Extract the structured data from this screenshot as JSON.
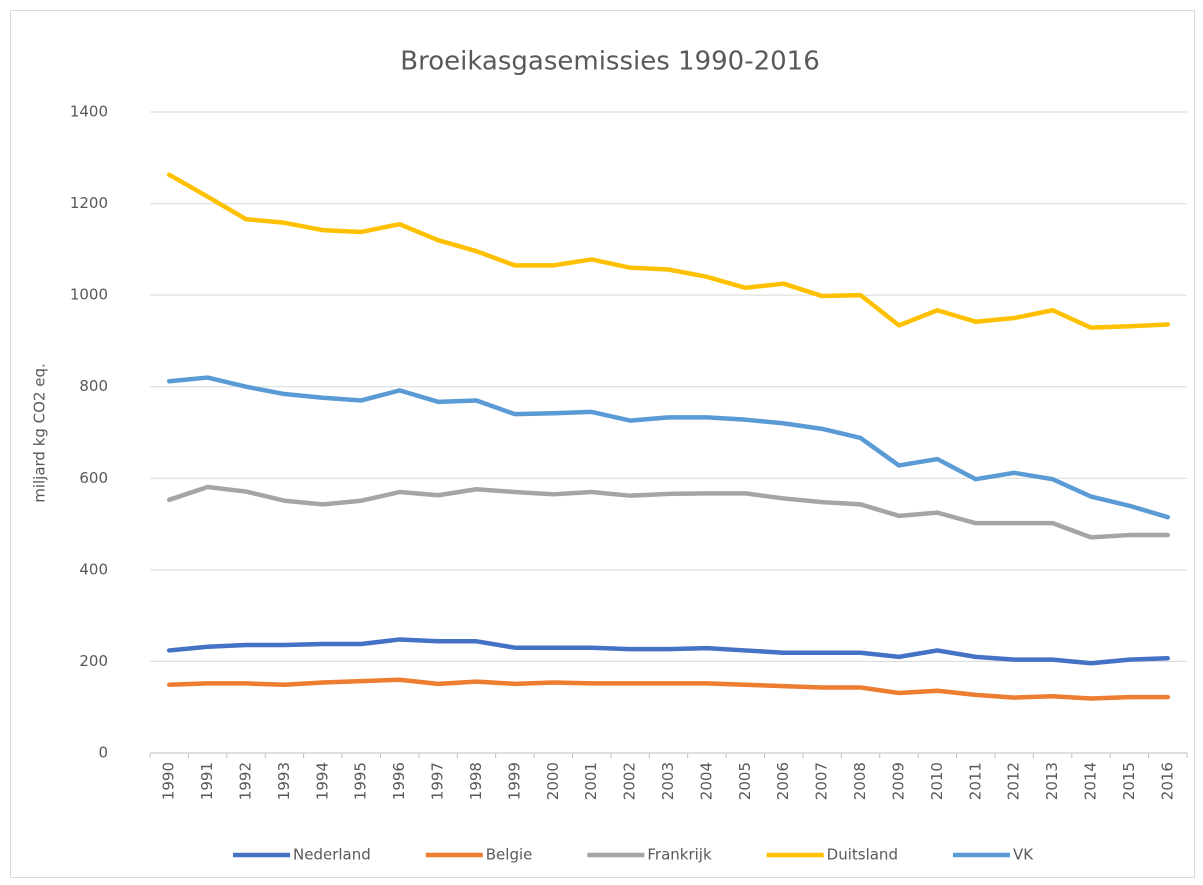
{
  "chart_data": {
    "type": "line",
    "title": "Broeikasgasemissies 1990-2016",
    "y_label": "miljard kg  CO2 eq.",
    "categories": [
      "1990",
      "1991",
      "1992",
      "1993",
      "1994",
      "1995",
      "1996",
      "1997",
      "1998",
      "1999",
      "2000",
      "2001",
      "2002",
      "2003",
      "2004",
      "2005",
      "2006",
      "2007",
      "2008",
      "2009",
      "2010",
      "2011",
      "2012",
      "2013",
      "2014",
      "2015",
      "2016"
    ],
    "series": [
      {
        "name": "Nederland",
        "color": "#4472c4",
        "values": [
          224,
          232,
          236,
          236,
          238,
          238,
          248,
          244,
          244,
          230,
          230,
          230,
          227,
          227,
          229,
          224,
          219,
          219,
          219,
          210,
          224,
          210,
          204,
          204,
          196,
          204,
          207
        ]
      },
      {
        "name": "Belgie",
        "color": "#ed7d31",
        "values": [
          149,
          152,
          152,
          149,
          154,
          157,
          160,
          151,
          156,
          151,
          154,
          152,
          152,
          152,
          152,
          149,
          146,
          143,
          143,
          131,
          136,
          127,
          121,
          124,
          119,
          122,
          122
        ]
      },
      {
        "name": "Frankrijk",
        "color": "#a5a5a5",
        "values": [
          553,
          581,
          571,
          551,
          543,
          551,
          570,
          563,
          576,
          570,
          565,
          570,
          562,
          566,
          567,
          567,
          556,
          548,
          543,
          518,
          525,
          502,
          502,
          502,
          471,
          476,
          476
        ]
      },
      {
        "name": "Duitsland",
        "color": "#ffc000",
        "values": [
          1263,
          1215,
          1166,
          1158,
          1142,
          1138,
          1155,
          1120,
          1096,
          1065,
          1065,
          1078,
          1060,
          1056,
          1040,
          1016,
          1025,
          998,
          1000,
          934,
          967,
          942,
          950,
          967,
          929,
          932,
          936
        ]
      },
      {
        "name": "VK",
        "color": "#5b9bd5",
        "values": [
          812,
          820,
          800,
          784,
          776,
          770,
          792,
          767,
          770,
          740,
          742,
          745,
          726,
          733,
          733,
          728,
          720,
          708,
          688,
          628,
          642,
          598,
          612,
          598,
          560,
          540,
          515
        ]
      }
    ],
    "ylim": [
      0,
      1400
    ],
    "yticks": [
      0,
      200,
      400,
      600,
      800,
      1000,
      1200,
      1400
    ],
    "grid": true,
    "legend": "bottom"
  }
}
